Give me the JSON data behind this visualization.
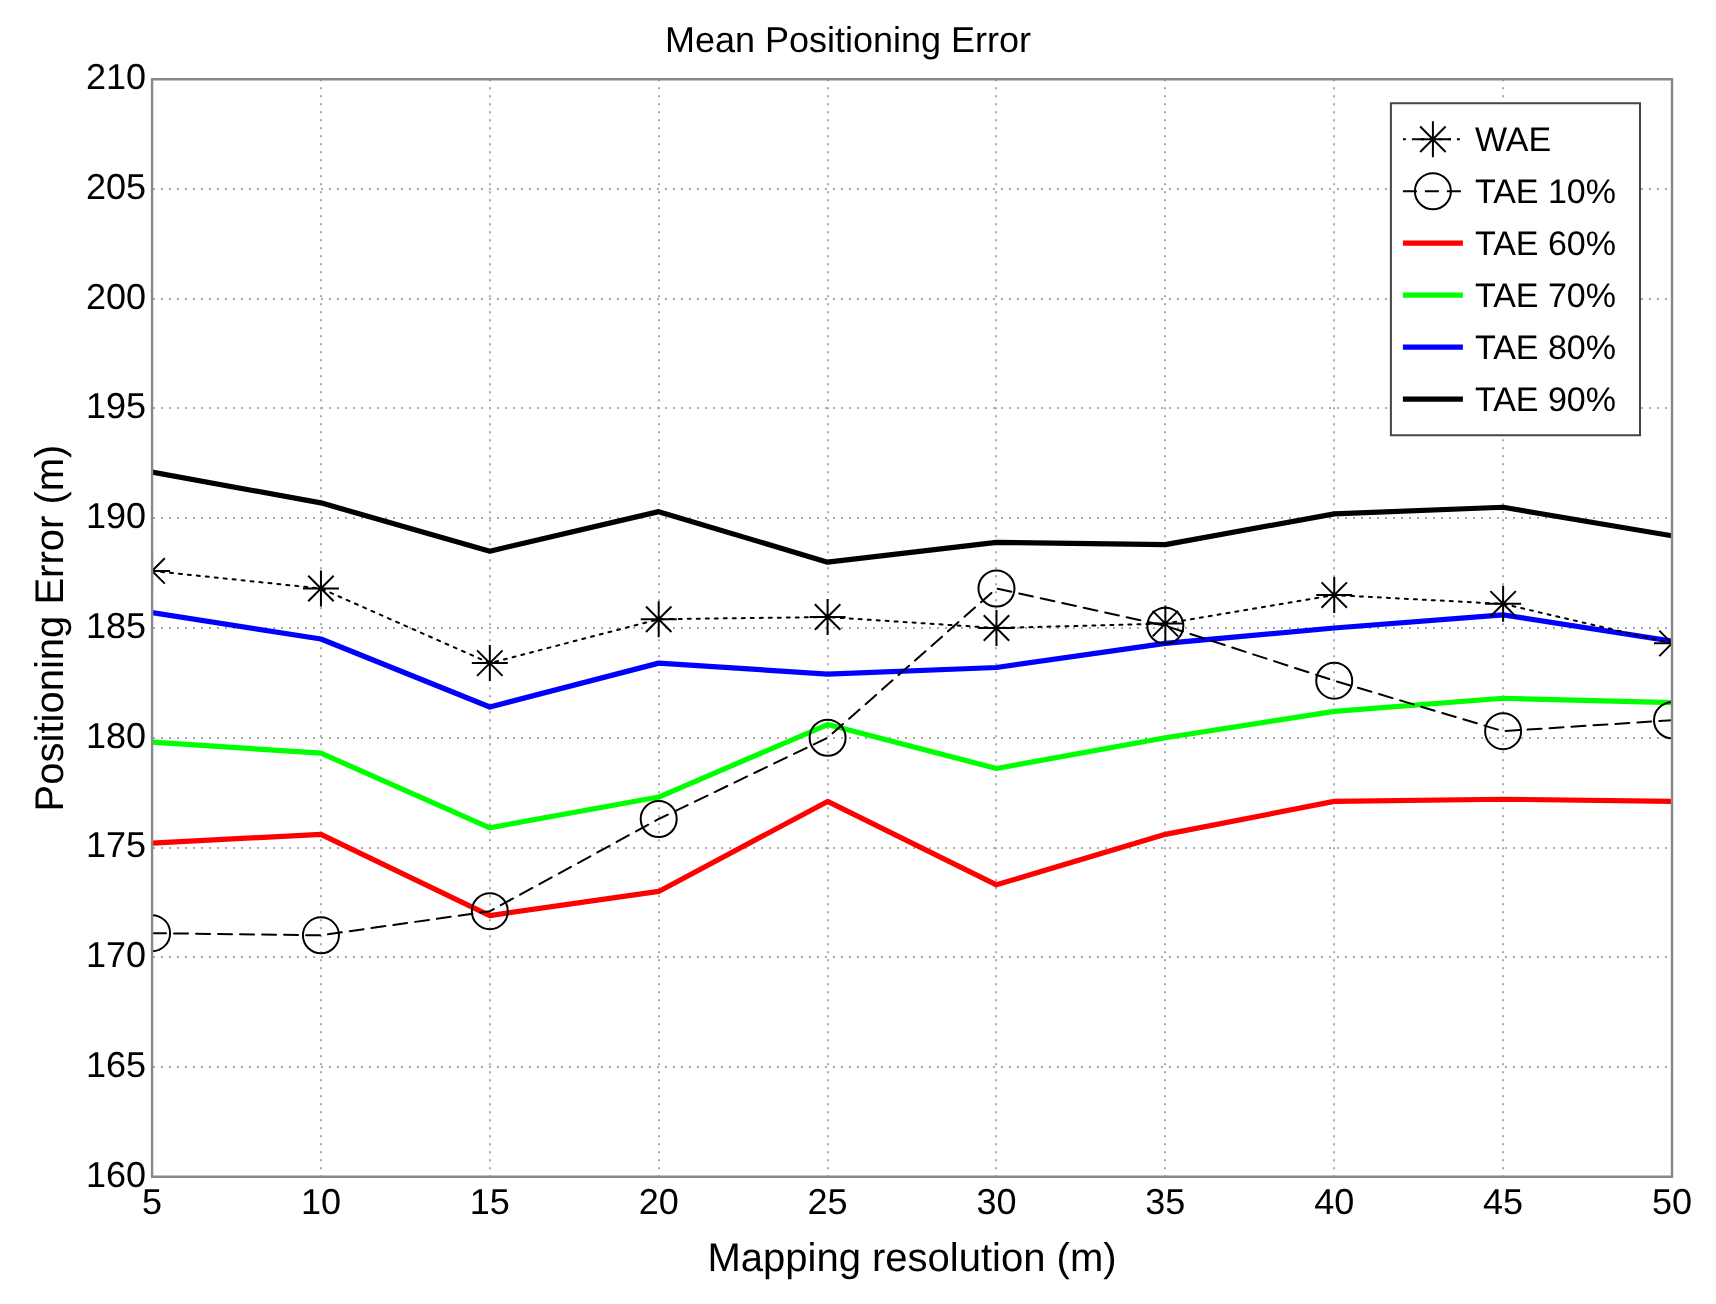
{
  "chart_data": {
    "type": "line",
    "title": "Mean Positioning Error",
    "xlabel": "Mapping resolution (m)",
    "ylabel": "Positioning Error (m)",
    "x": [
      5,
      10,
      15,
      20,
      25,
      30,
      35,
      40,
      45,
      50
    ],
    "xlim": [
      5,
      50
    ],
    "xticks": [
      5,
      10,
      15,
      20,
      25,
      30,
      35,
      40,
      45,
      50
    ],
    "ylim": [
      160,
      210
    ],
    "yticks": [
      160,
      165,
      170,
      175,
      180,
      185,
      190,
      195,
      200,
      205,
      210
    ],
    "grid": true,
    "legend": "top right",
    "series": [
      {
        "name": "WAE",
        "color": "#000000",
        "marker": "cross",
        "line_style": "dotted",
        "values": [
          187.6,
          186.8,
          183.4,
          185.4,
          185.5,
          185.0,
          185.2,
          186.5,
          186.1,
          184.3
        ]
      },
      {
        "name": "TAE 10%",
        "color": "#000000",
        "marker": "circle",
        "line_style": "dashed",
        "values": [
          171.1,
          171.0,
          172.1,
          176.3,
          180.0,
          186.8,
          185.1,
          182.6,
          180.3,
          180.8
        ]
      },
      {
        "name": "TAE 60%",
        "color": "#ff0000",
        "marker": "none",
        "line_style": "solid",
        "values": [
          175.2,
          175.6,
          171.9,
          173.0,
          177.1,
          173.3,
          175.6,
          177.1,
          177.2,
          177.1
        ]
      },
      {
        "name": "TAE 70%",
        "color": "#00ff00",
        "marker": "none",
        "line_style": "solid",
        "values": [
          179.8,
          179.3,
          175.9,
          177.3,
          180.6,
          178.6,
          180.0,
          181.2,
          181.8,
          181.6
        ]
      },
      {
        "name": "TAE 80%",
        "color": "#0000ff",
        "marker": "none",
        "line_style": "solid",
        "values": [
          185.7,
          184.5,
          181.4,
          183.4,
          182.9,
          183.2,
          184.3,
          185.0,
          185.6,
          184.4
        ]
      },
      {
        "name": "TAE 90%",
        "color": "#000000",
        "marker": "none",
        "line_style": "solid",
        "values": [
          192.1,
          190.7,
          188.5,
          190.3,
          188.0,
          188.9,
          188.8,
          190.2,
          190.5,
          189.2
        ]
      }
    ]
  }
}
